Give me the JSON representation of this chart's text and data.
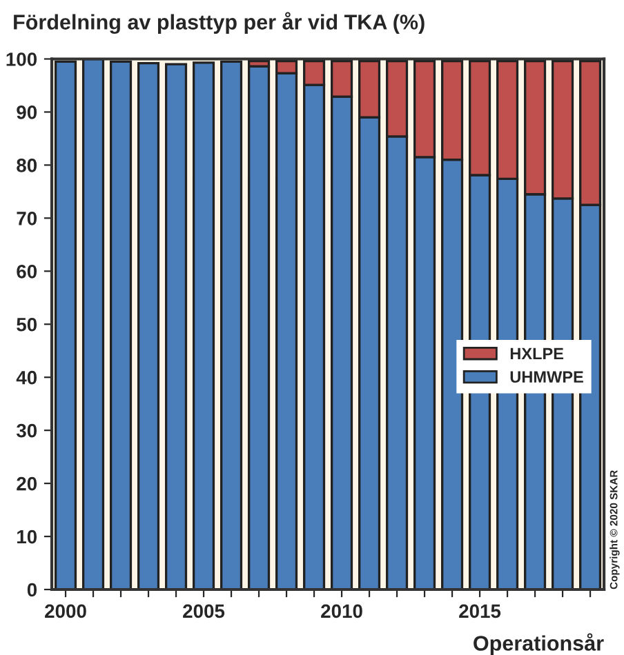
{
  "chart_data": {
    "type": "bar",
    "stacked": true,
    "title": "Fördelning av plasttyp per år vid TKA (%)",
    "xlabel": "Operationsår",
    "categories": [
      "2000",
      null,
      null,
      null,
      null,
      "2005",
      null,
      null,
      null,
      null,
      "2010",
      null,
      null,
      null,
      null,
      "2015",
      null,
      null,
      null,
      null
    ],
    "series": [
      {
        "name": "UHMWPE",
        "color": "#4a7ebb",
        "values": [
          99.5,
          100,
          99.5,
          99.2,
          99.0,
          99.3,
          99.5,
          98.6,
          97.3,
          95.1,
          92.9,
          89.0,
          85.4,
          81.5,
          81.0,
          78.1,
          77.4,
          74.5,
          73.7,
          72.5
        ]
      },
      {
        "name": "HXLPE",
        "color": "#c0504d",
        "values": [
          null,
          null,
          null,
          null,
          null,
          null,
          null,
          1.0,
          2.3,
          4.5,
          6.7,
          10.6,
          14.2,
          18.1,
          18.6,
          21.5,
          22.2,
          25.1,
          25.9,
          27.1
        ]
      }
    ],
    "ylim": [
      0,
      100
    ],
    "yticks": [
      0,
      10,
      20,
      30,
      40,
      50,
      60,
      70,
      80,
      90,
      100
    ],
    "grid": false,
    "legend": "right",
    "annotations": [
      "Copyright © 2020 SKAR"
    ]
  }
}
